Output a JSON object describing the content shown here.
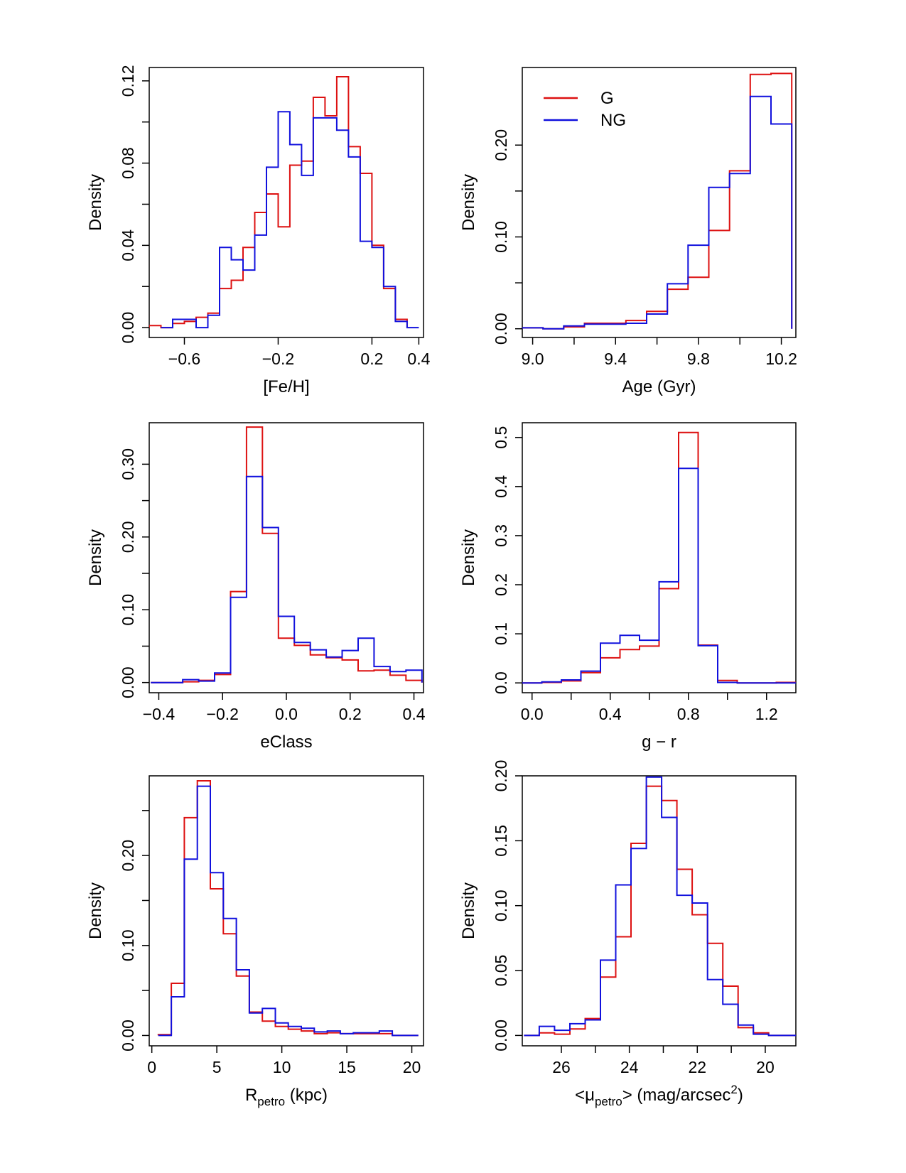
{
  "figure": {
    "legend": [
      {
        "label": "G",
        "color": "#dd1111"
      },
      {
        "label": "NG",
        "color": "#1111dd"
      }
    ]
  },
  "chart_data": [
    {
      "type": "histogram",
      "title": "",
      "xlabel": "[Fe/H]",
      "ylabel": "Density",
      "xlim": [
        -0.75,
        0.42
      ],
      "ylim": [
        -0.0048,
        0.1265
      ],
      "xticks": [
        -0.6,
        -0.2,
        0.2,
        0.4
      ],
      "xtick_labels": [
        "−0.6",
        "−0.2",
        "0.2",
        "0.4"
      ],
      "yticks": [
        0.0,
        0.04,
        0.08,
        0.12
      ],
      "ytick_labels": [
        "0.00",
        "0.04",
        "0.08",
        "0.12"
      ],
      "yminor": [
        0.02,
        0.06,
        0.1
      ],
      "series": [
        {
          "name": "G",
          "edges": [
            -0.75,
            -0.7,
            -0.65,
            -0.6,
            -0.55,
            -0.5,
            -0.45,
            -0.4,
            -0.35,
            -0.3,
            -0.25,
            -0.2,
            -0.15,
            -0.1,
            -0.05,
            0.0,
            0.05,
            0.1,
            0.15,
            0.2,
            0.25,
            0.3,
            0.35
          ],
          "values": [
            0.001,
            0.0,
            0.002,
            0.003,
            0.005,
            0.007,
            0.019,
            0.023,
            0.039,
            0.056,
            0.065,
            0.049,
            0.079,
            0.081,
            0.112,
            0.103,
            0.122,
            0.088,
            0.075,
            0.04,
            0.019,
            0.004
          ]
        },
        {
          "name": "NG",
          "edges": [
            -0.7,
            -0.65,
            -0.6,
            -0.55,
            -0.5,
            -0.45,
            -0.4,
            -0.35,
            -0.3,
            -0.25,
            -0.2,
            -0.15,
            -0.1,
            -0.05,
            0.0,
            0.05,
            0.1,
            0.15,
            0.2,
            0.25,
            0.3,
            0.35,
            0.4
          ],
          "values": [
            0.0,
            0.004,
            0.004,
            0.0,
            0.006,
            0.039,
            0.033,
            0.028,
            0.045,
            0.078,
            0.105,
            0.089,
            0.074,
            0.102,
            0.102,
            0.096,
            0.083,
            0.042,
            0.039,
            0.02,
            0.003,
            0.0
          ]
        }
      ]
    },
    {
      "type": "histogram",
      "title": "",
      "xlabel": "Age (Gyr)",
      "ylabel": "Density",
      "xlim": [
        8.95,
        10.27
      ],
      "ylim": [
        -0.0095,
        0.2845
      ],
      "xticks": [
        9.0,
        9.4,
        9.8,
        10.2
      ],
      "xtick_labels": [
        "9.0",
        "9.4",
        "9.8",
        "10.2"
      ],
      "xminor": [
        9.2,
        9.6,
        10.0
      ],
      "yticks": [
        0.0,
        0.1,
        0.2
      ],
      "ytick_labels": [
        "0.00",
        "0.10",
        "0.20"
      ],
      "yminor": [
        0.05,
        0.15
      ],
      "legend_position": "top-left",
      "series": [
        {
          "name": "G",
          "edges": [
            8.95,
            9.05,
            9.15,
            9.25,
            9.35,
            9.45,
            9.55,
            9.65,
            9.75,
            9.85,
            9.95,
            10.05,
            10.15,
            10.25
          ],
          "values": [
            0.001,
            0.0,
            0.002,
            0.006,
            0.006,
            0.009,
            0.019,
            0.043,
            0.056,
            0.107,
            0.172,
            0.277,
            0.278
          ]
        },
        {
          "name": "NG",
          "edges": [
            8.95,
            9.05,
            9.15,
            9.25,
            9.35,
            9.45,
            9.55,
            9.65,
            9.75,
            9.85,
            9.95,
            10.05,
            10.15,
            10.25
          ],
          "values": [
            0.001,
            0.0,
            0.003,
            0.005,
            0.005,
            0.006,
            0.016,
            0.049,
            0.091,
            0.154,
            0.169,
            0.253,
            0.223
          ]
        }
      ]
    },
    {
      "type": "histogram",
      "title": "",
      "xlabel": "eClass",
      "ylabel": "Density",
      "xlim": [
        -0.43,
        0.43
      ],
      "ylim": [
        -0.014,
        0.357
      ],
      "xticks": [
        -0.4,
        -0.2,
        0.0,
        0.2,
        0.4
      ],
      "xtick_labels": [
        "−0.4",
        "−0.2",
        "0.0",
        "0.2",
        "0.4"
      ],
      "yticks": [
        0.0,
        0.1,
        0.2,
        0.3
      ],
      "ytick_labels": [
        "0.00",
        "0.10",
        "0.20",
        "0.30"
      ],
      "yminor": [
        0.05,
        0.15,
        0.25
      ],
      "series": [
        {
          "name": "G",
          "edges": [
            -0.425,
            -0.375,
            -0.325,
            -0.275,
            -0.225,
            -0.175,
            -0.125,
            -0.075,
            -0.025,
            0.025,
            0.075,
            0.125,
            0.175,
            0.225,
            0.275,
            0.325,
            0.375,
            0.425
          ],
          "values": [
            0.0,
            0.0,
            0.001,
            0.003,
            0.011,
            0.125,
            0.351,
            0.205,
            0.061,
            0.051,
            0.038,
            0.034,
            0.031,
            0.016,
            0.017,
            0.01,
            0.003
          ]
        },
        {
          "name": "NG",
          "edges": [
            -0.425,
            -0.375,
            -0.325,
            -0.275,
            -0.225,
            -0.175,
            -0.125,
            -0.075,
            -0.025,
            0.025,
            0.075,
            0.125,
            0.175,
            0.225,
            0.275,
            0.325,
            0.375,
            0.425
          ],
          "values": [
            0.0,
            0.0,
            0.004,
            0.002,
            0.013,
            0.117,
            0.283,
            0.213,
            0.091,
            0.055,
            0.045,
            0.035,
            0.044,
            0.061,
            0.022,
            0.015,
            0.017
          ]
        }
      ]
    },
    {
      "type": "histogram",
      "title": "",
      "xlabel": "g − r",
      "ylabel": "Density",
      "xlim": [
        -0.05,
        1.35
      ],
      "ylim": [
        -0.02,
        0.53
      ],
      "xticks": [
        0.0,
        0.4,
        0.8,
        1.2
      ],
      "xtick_labels": [
        "0.0",
        "0.4",
        "0.8",
        "1.2"
      ],
      "xminor": [
        0.2,
        0.6,
        1.0
      ],
      "yticks": [
        0.0,
        0.1,
        0.2,
        0.3,
        0.4,
        0.5
      ],
      "ytick_labels": [
        "0.0",
        "0.1",
        "0.2",
        "0.3",
        "0.4",
        "0.5"
      ],
      "series": [
        {
          "name": "G",
          "edges": [
            -0.05,
            0.05,
            0.15,
            0.25,
            0.35,
            0.45,
            0.55,
            0.65,
            0.75,
            0.85,
            0.95,
            1.05,
            1.15,
            1.25,
            1.35
          ],
          "values": [
            0.0,
            0.001,
            0.004,
            0.021,
            0.051,
            0.068,
            0.075,
            0.192,
            0.51,
            0.077,
            0.005,
            0.0,
            0.0,
            0.001
          ]
        },
        {
          "name": "NG",
          "edges": [
            -0.05,
            0.05,
            0.15,
            0.25,
            0.35,
            0.45,
            0.55,
            0.65,
            0.75,
            0.85,
            0.95,
            1.05,
            1.15,
            1.25,
            1.35
          ],
          "values": [
            0.0,
            0.002,
            0.006,
            0.024,
            0.081,
            0.097,
            0.087,
            0.206,
            0.437,
            0.076,
            0.001,
            0.0,
            0.0,
            0.0
          ]
        }
      ]
    },
    {
      "type": "histogram",
      "title": "",
      "xlabel": "R",
      "xlabel_sub": "petro",
      "xlabel_tail": " (kpc)",
      "ylabel": "Density",
      "xlim": [
        -0.2,
        20.9
      ],
      "ylim": [
        -0.0115,
        0.2885
      ],
      "xticks": [
        0,
        5,
        10,
        15,
        20
      ],
      "xtick_labels": [
        "0",
        "5",
        "10",
        "15",
        "20"
      ],
      "yticks": [
        0.0,
        0.1,
        0.2
      ],
      "ytick_labels": [
        "0.00",
        "0.10",
        "0.20"
      ],
      "yminor": [
        0.05,
        0.15,
        0.25
      ],
      "series": [
        {
          "name": "G",
          "edges": [
            0.5,
            1.5,
            2.5,
            3.5,
            4.5,
            5.5,
            6.5,
            7.5,
            8.5,
            9.5,
            10.5,
            11.5,
            12.5,
            13.5,
            14.5,
            15.5,
            16.5,
            17.5,
            18.5,
            19.5,
            20.5
          ],
          "values": [
            0.001,
            0.058,
            0.242,
            0.283,
            0.163,
            0.113,
            0.066,
            0.026,
            0.016,
            0.01,
            0.007,
            0.005,
            0.002,
            0.003,
            0.002,
            0.002,
            0.002,
            0.002,
            0.0,
            0.0
          ]
        },
        {
          "name": "NG",
          "edges": [
            0.5,
            1.5,
            2.5,
            3.5,
            4.5,
            5.5,
            6.5,
            7.5,
            8.5,
            9.5,
            10.5,
            11.5,
            12.5,
            13.5,
            14.5,
            15.5,
            16.5,
            17.5,
            18.5,
            19.5,
            20.5
          ],
          "values": [
            0.0,
            0.043,
            0.196,
            0.277,
            0.181,
            0.13,
            0.073,
            0.025,
            0.03,
            0.014,
            0.01,
            0.008,
            0.004,
            0.005,
            0.002,
            0.003,
            0.003,
            0.005,
            0.0,
            0.0
          ]
        }
      ]
    },
    {
      "type": "histogram",
      "title": "",
      "xlabel": "<μ",
      "xlabel_sub": "petro",
      "xlabel_tail": "> (mag/arcsec",
      "xlabel_sup": "2",
      "xlabel_end": ")",
      "ylabel": "Density",
      "x_reversed": true,
      "xlim": [
        27.15,
        19.1
      ],
      "ylim": [
        -0.008,
        0.2
      ],
      "xticks": [
        26,
        24,
        22,
        20
      ],
      "xtick_labels": [
        "26",
        "24",
        "22",
        "20"
      ],
      "xminor": [
        25,
        23,
        21
      ],
      "yticks": [
        0.0,
        0.05,
        0.1,
        0.15,
        0.2
      ],
      "ytick_labels": [
        "0.00",
        "0.05",
        "0.10",
        "0.15",
        "0.20"
      ],
      "series": [
        {
          "name": "G",
          "edges": [
            27.1,
            26.65,
            26.2,
            25.75,
            25.3,
            24.85,
            24.4,
            23.95,
            23.5,
            23.05,
            22.6,
            22.15,
            21.7,
            21.25,
            20.8,
            20.35,
            19.9,
            19.45,
            19.0
          ],
          "values": [
            0.0,
            0.002,
            0.001,
            0.005,
            0.013,
            0.045,
            0.076,
            0.148,
            0.192,
            0.181,
            0.128,
            0.093,
            0.071,
            0.038,
            0.006,
            0.002,
            0.0,
            0.0
          ]
        },
        {
          "name": "NG",
          "edges": [
            27.1,
            26.65,
            26.2,
            25.75,
            25.3,
            24.85,
            24.4,
            23.95,
            23.5,
            23.05,
            22.6,
            22.15,
            21.7,
            21.25,
            20.8,
            20.35,
            19.9,
            19.45,
            19.0
          ],
          "values": [
            0.0,
            0.007,
            0.004,
            0.009,
            0.012,
            0.058,
            0.116,
            0.144,
            0.199,
            0.168,
            0.108,
            0.102,
            0.043,
            0.024,
            0.008,
            0.001,
            0.0,
            0.0
          ]
        }
      ]
    }
  ]
}
